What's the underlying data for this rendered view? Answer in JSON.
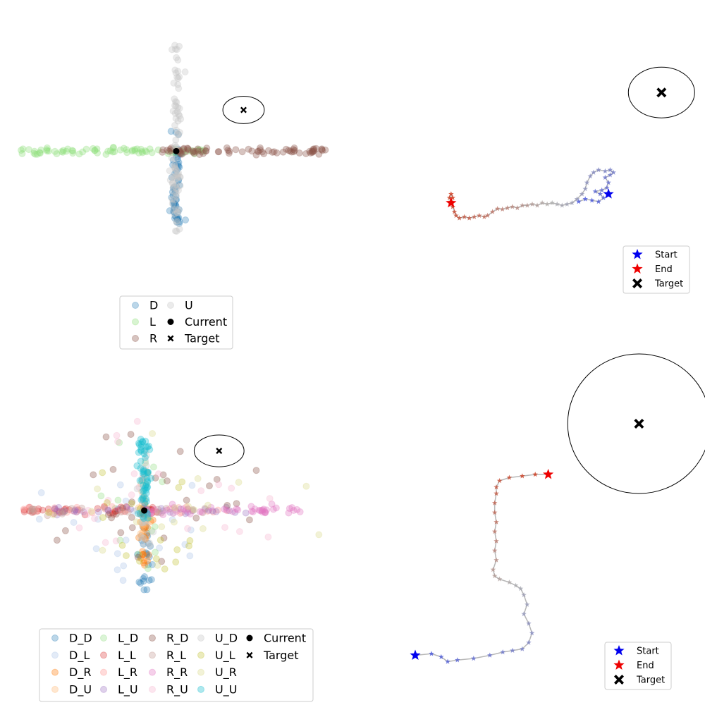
{
  "chart_data": [
    {
      "type": "scatter",
      "title": "",
      "xlabel": "",
      "ylabel": "",
      "axes": "off",
      "xlim": [
        -3.2,
        3.2
      ],
      "ylim": [
        -3.2,
        4.2
      ],
      "current": [
        0,
        0
      ],
      "target": [
        1.3,
        1.2
      ],
      "target_radius": 0.4,
      "series": [
        {
          "name": "D",
          "color": "#1f77b4",
          "alpha": 0.3,
          "spread": "vertical",
          "range": [
            -2.2,
            0.6
          ],
          "count": 60,
          "seed": 11
        },
        {
          "name": "L",
          "color": "#90e07c",
          "alpha": 0.35,
          "spread": "horizontal",
          "range": [
            -3.0,
            0.7
          ],
          "count": 75,
          "seed": 22
        },
        {
          "name": "R",
          "color": "#8c564b",
          "alpha": 0.35,
          "spread": "horizontal",
          "range": [
            -0.3,
            3.0
          ],
          "count": 80,
          "seed": 33
        },
        {
          "name": "U",
          "color": "#c7c7c7",
          "alpha": 0.35,
          "spread": "vertical",
          "range": [
            -2.4,
            3.1
          ],
          "count": 85,
          "seed": 44
        }
      ],
      "legend": {
        "location": "lower center",
        "columns": 2,
        "entries": [
          "D",
          "L",
          "R",
          "U",
          "Current",
          "Target"
        ]
      }
    },
    {
      "type": "line",
      "title": "",
      "xlabel": "",
      "ylabel": "",
      "axes": "off",
      "xlim": [
        0,
        10
      ],
      "ylim": [
        0,
        10
      ],
      "trajectory": [
        [
          6.4,
          4.0
        ],
        [
          6.6,
          4.1
        ],
        [
          6.8,
          4.05
        ],
        [
          7.0,
          4.0
        ],
        [
          7.15,
          4.15
        ],
        [
          7.05,
          4.3
        ],
        [
          6.9,
          4.4
        ],
        [
          7.1,
          4.45
        ],
        [
          7.25,
          4.55
        ],
        [
          7.3,
          4.75
        ],
        [
          7.2,
          4.95
        ],
        [
          7.35,
          5.05
        ],
        [
          7.45,
          5.15
        ],
        [
          7.35,
          5.25
        ],
        [
          7.2,
          5.2
        ],
        [
          7.0,
          5.25
        ],
        [
          6.85,
          5.15
        ],
        [
          6.75,
          5.0
        ],
        [
          6.65,
          4.75
        ],
        [
          6.6,
          4.5
        ],
        [
          6.5,
          4.3
        ],
        [
          6.35,
          4.1
        ],
        [
          6.2,
          3.95
        ],
        [
          6.05,
          3.9
        ],
        [
          5.9,
          3.85
        ],
        [
          5.75,
          3.9
        ],
        [
          5.6,
          3.95
        ],
        [
          5.45,
          3.9
        ],
        [
          5.3,
          3.95
        ],
        [
          5.15,
          3.85
        ],
        [
          5.0,
          3.9
        ],
        [
          4.85,
          3.85
        ],
        [
          4.7,
          3.85
        ],
        [
          4.55,
          3.75
        ],
        [
          4.4,
          3.8
        ],
        [
          4.25,
          3.75
        ],
        [
          4.1,
          3.7
        ],
        [
          3.95,
          3.72
        ],
        [
          3.8,
          3.6
        ],
        [
          3.65,
          3.45
        ],
        [
          3.55,
          3.4
        ],
        [
          3.4,
          3.45
        ],
        [
          3.25,
          3.4
        ],
        [
          3.1,
          3.35
        ],
        [
          2.95,
          3.4
        ],
        [
          2.8,
          3.35
        ],
        [
          2.7,
          3.45
        ],
        [
          2.65,
          3.6
        ],
        [
          2.6,
          3.8
        ],
        [
          2.55,
          4.0
        ],
        [
          2.5,
          4.15
        ],
        [
          2.55,
          4.3
        ],
        [
          2.6,
          4.15
        ]
      ],
      "start": [
        7.3,
        4.3
      ],
      "end": [
        2.55,
        3.95
      ],
      "target": [
        8.9,
        8.3
      ],
      "target_radius": 1.0,
      "colormap": [
        "#3344dd",
        "#aaaaaa",
        "#cc2200"
      ],
      "legend": {
        "location": "lower right",
        "entries": [
          "Start",
          "End",
          "Target"
        ]
      }
    },
    {
      "type": "scatter",
      "title": "",
      "xlabel": "",
      "ylabel": "",
      "axes": "off",
      "xlim": [
        -2.2,
        3.0
      ],
      "ylim": [
        -2.5,
        3.0
      ],
      "current": [
        0,
        0
      ],
      "target": [
        1.2,
        1.5
      ],
      "target_radius": 0.4,
      "series": [
        {
          "name": "D_D",
          "color": "#1f77b4",
          "alpha": 0.3,
          "spread": "vertical",
          "range": [
            -2.0,
            0.3
          ],
          "count": 30,
          "seed": 101
        },
        {
          "name": "D_L",
          "color": "#aec7e8",
          "alpha": 0.35,
          "spread": "cloud",
          "range": [
            -1.8,
            0.8
          ],
          "count": 22,
          "seed": 102
        },
        {
          "name": "D_R",
          "color": "#ff7f0e",
          "alpha": 0.35,
          "spread": "vertical",
          "range": [
            -1.5,
            0.2
          ],
          "count": 30,
          "seed": 103
        },
        {
          "name": "D_U",
          "color": "#ffbb78",
          "alpha": 0.35,
          "spread": "vertical",
          "range": [
            -0.7,
            1.0
          ],
          "count": 25,
          "seed": 104
        },
        {
          "name": "L_D",
          "color": "#98df8a",
          "alpha": 0.35,
          "spread": "cloud",
          "range": [
            -1.8,
            2.0
          ],
          "count": 15,
          "seed": 105
        },
        {
          "name": "L_L",
          "color": "#d62728",
          "alpha": 0.3,
          "spread": "horizontal",
          "range": [
            -2.0,
            0.3
          ],
          "count": 40,
          "seed": 106
        },
        {
          "name": "L_R",
          "color": "#ff9896",
          "alpha": 0.35,
          "spread": "horizontal",
          "range": [
            -2.0,
            1.5
          ],
          "count": 30,
          "seed": 107
        },
        {
          "name": "L_U",
          "color": "#9467bd",
          "alpha": 0.3,
          "spread": "horizontal",
          "range": [
            -1.5,
            1.8
          ],
          "count": 35,
          "seed": 108
        },
        {
          "name": "R_D",
          "color": "#8c564b",
          "alpha": 0.35,
          "spread": "cloud",
          "range": [
            -1.5,
            2.0
          ],
          "count": 30,
          "seed": 109
        },
        {
          "name": "R_L",
          "color": "#c49c94",
          "alpha": 0.35,
          "spread": "horizontal",
          "range": [
            -2.0,
            1.0
          ],
          "count": 25,
          "seed": 110
        },
        {
          "name": "R_R",
          "color": "#e377c2",
          "alpha": 0.35,
          "spread": "horizontal",
          "range": [
            0.0,
            2.5
          ],
          "count": 45,
          "seed": 111
        },
        {
          "name": "R_U",
          "color": "#f7b6d2",
          "alpha": 0.35,
          "spread": "cloud",
          "range": [
            -1.0,
            2.5
          ],
          "count": 25,
          "seed": 112
        },
        {
          "name": "U_D",
          "color": "#c7c7c7",
          "alpha": 0.35,
          "spread": "vertical",
          "range": [
            -1.0,
            1.5
          ],
          "count": 20,
          "seed": 113
        },
        {
          "name": "U_L",
          "color": "#bcbd22",
          "alpha": 0.3,
          "spread": "cloud",
          "range": [
            -2.0,
            0.8
          ],
          "count": 18,
          "seed": 114
        },
        {
          "name": "U_R",
          "color": "#dbdb8d",
          "alpha": 0.35,
          "spread": "cloud",
          "range": [
            -1.5,
            2.8
          ],
          "count": 18,
          "seed": 115
        },
        {
          "name": "U_U",
          "color": "#17becf",
          "alpha": 0.35,
          "spread": "vertical",
          "range": [
            -0.2,
            1.8
          ],
          "count": 60,
          "seed": 116
        }
      ],
      "legend": {
        "location": "lower center",
        "columns": 5,
        "entries": [
          "D_D",
          "D_L",
          "D_R",
          "D_U",
          "L_D",
          "L_L",
          "L_R",
          "L_U",
          "R_D",
          "R_L",
          "R_R",
          "R_U",
          "U_D",
          "U_L",
          "U_R",
          "U_U",
          "Current",
          "Target"
        ]
      }
    },
    {
      "type": "line",
      "title": "",
      "xlabel": "",
      "ylabel": "",
      "axes": "off",
      "xlim": [
        0,
        10
      ],
      "ylim": [
        0,
        10
      ],
      "trajectory": [
        [
          1.5,
          0.9
        ],
        [
          2.0,
          0.95
        ],
        [
          2.3,
          0.85
        ],
        [
          2.5,
          0.7
        ],
        [
          2.8,
          0.75
        ],
        [
          3.3,
          0.8
        ],
        [
          3.8,
          0.9
        ],
        [
          4.2,
          1.0
        ],
        [
          4.5,
          1.05
        ],
        [
          4.8,
          1.1
        ],
        [
          5.0,
          1.3
        ],
        [
          5.1,
          1.6
        ],
        [
          5.0,
          1.9
        ],
        [
          4.85,
          2.2
        ],
        [
          4.95,
          2.5
        ],
        [
          4.85,
          2.8
        ],
        [
          4.75,
          3.0
        ],
        [
          4.6,
          3.1
        ],
        [
          4.4,
          3.2
        ],
        [
          4.1,
          3.3
        ],
        [
          3.95,
          3.4
        ],
        [
          3.9,
          3.6
        ],
        [
          4.0,
          3.9
        ],
        [
          3.95,
          4.2
        ],
        [
          4.0,
          4.5
        ],
        [
          3.95,
          4.8
        ],
        [
          4.0,
          5.1
        ],
        [
          3.95,
          5.4
        ],
        [
          3.95,
          5.7
        ],
        [
          4.0,
          6.0
        ],
        [
          4.0,
          6.2
        ],
        [
          4.1,
          6.4
        ],
        [
          4.4,
          6.5
        ],
        [
          4.8,
          6.55
        ],
        [
          5.2,
          6.6
        ],
        [
          5.6,
          6.6
        ]
      ],
      "start": [
        1.5,
        0.9
      ],
      "end": [
        5.6,
        6.6
      ],
      "target": [
        8.4,
        8.2
      ],
      "target_radius": 2.2,
      "colormap": [
        "#3344dd",
        "#aaaaaa",
        "#cc2200"
      ],
      "legend": {
        "location": "lower right",
        "entries": [
          "Start",
          "End",
          "Target"
        ]
      }
    }
  ]
}
